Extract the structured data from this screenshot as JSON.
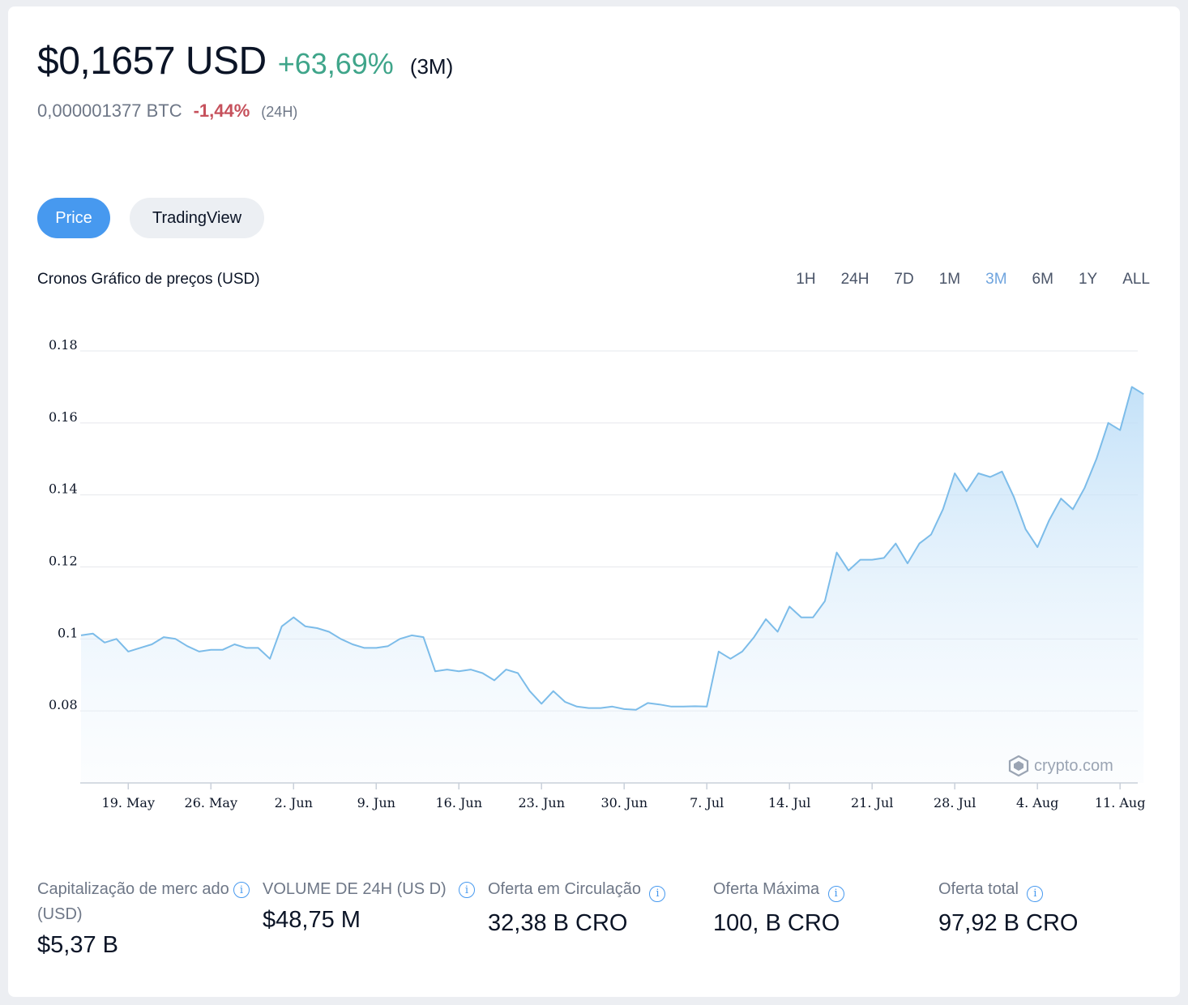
{
  "header": {
    "price": "$0,1657 USD",
    "change": "+63,69%",
    "period": "(3M)",
    "btc_price": "0,000001377 BTC",
    "btc_change": "-1,44%",
    "btc_period": "(24H)"
  },
  "tabs": [
    {
      "label": "Price",
      "active": true
    },
    {
      "label": "TradingView",
      "active": false
    }
  ],
  "chart_title": "Cronos Gráfico de preços (USD)",
  "ranges": [
    {
      "label": "1H",
      "active": false
    },
    {
      "label": "24H",
      "active": false
    },
    {
      "label": "7D",
      "active": false
    },
    {
      "label": "1M",
      "active": false
    },
    {
      "label": "3M",
      "active": true
    },
    {
      "label": "6M",
      "active": false
    },
    {
      "label": "1Y",
      "active": false
    },
    {
      "label": "ALL",
      "active": false
    }
  ],
  "watermark": "crypto.com",
  "colors": {
    "accent": "#4799ef",
    "positive": "#3fa58a",
    "negative": "#c6515c",
    "line": "#7cbce9"
  },
  "chart_data": {
    "type": "area",
    "title": "Cronos Gráfico de preços (USD)",
    "xlabel": "",
    "ylabel": "",
    "ylim": [
      0.06,
      0.18
    ],
    "y_ticks": [
      "0.08",
      "0.1",
      "0.12",
      "0.14",
      "0.16",
      "0.18"
    ],
    "x_ticks": [
      "19. May",
      "26. May",
      "2. Jun",
      "9. Jun",
      "16. Jun",
      "23. Jun",
      "30. Jun",
      "7. Jul",
      "14. Jul",
      "21. Jul",
      "28. Jul",
      "4. Aug",
      "11. Aug"
    ],
    "x_start": "2022-05-15",
    "grid": true,
    "legend": "none",
    "series": [
      {
        "x": [
          "2022-05-15",
          "2022-05-16",
          "2022-05-17",
          "2022-05-18",
          "2022-05-19",
          "2022-05-20",
          "2022-05-21",
          "2022-05-22",
          "2022-05-23",
          "2022-05-24",
          "2022-05-25",
          "2022-05-26",
          "2022-05-27",
          "2022-05-28",
          "2022-05-29",
          "2022-05-30",
          "2022-05-31",
          "2022-06-01",
          "2022-06-02",
          "2022-06-03",
          "2022-06-04",
          "2022-06-05",
          "2022-06-06",
          "2022-06-07",
          "2022-06-08",
          "2022-06-09",
          "2022-06-10",
          "2022-06-11",
          "2022-06-12",
          "2022-06-13",
          "2022-06-14",
          "2022-06-15",
          "2022-06-16",
          "2022-06-17",
          "2022-06-18",
          "2022-06-19",
          "2022-06-20",
          "2022-06-21",
          "2022-06-22",
          "2022-06-23",
          "2022-06-24",
          "2022-06-25",
          "2022-06-26",
          "2022-06-27",
          "2022-06-28",
          "2022-06-29",
          "2022-06-30",
          "2022-07-01",
          "2022-07-02",
          "2022-07-03",
          "2022-07-04",
          "2022-07-05",
          "2022-07-06",
          "2022-07-07",
          "2022-07-08",
          "2022-07-09",
          "2022-07-10",
          "2022-07-11",
          "2022-07-12",
          "2022-07-13",
          "2022-07-14",
          "2022-07-15",
          "2022-07-16",
          "2022-07-17",
          "2022-07-18",
          "2022-07-19",
          "2022-07-20",
          "2022-07-21",
          "2022-07-22",
          "2022-07-23",
          "2022-07-24",
          "2022-07-25",
          "2022-07-26",
          "2022-07-27",
          "2022-07-28",
          "2022-07-29",
          "2022-07-30",
          "2022-07-31",
          "2022-08-01",
          "2022-08-02",
          "2022-08-03",
          "2022-08-04",
          "2022-08-05",
          "2022-08-06",
          "2022-08-07",
          "2022-08-08",
          "2022-08-09",
          "2022-08-10",
          "2022-08-11",
          "2022-08-12",
          "2022-08-13"
        ],
        "y": [
          0.101,
          0.1015,
          0.099,
          0.1,
          0.0965,
          0.0975,
          0.0985,
          0.1005,
          0.1,
          0.098,
          0.0965,
          0.097,
          0.097,
          0.0985,
          0.0975,
          0.0975,
          0.0945,
          0.1035,
          0.106,
          0.1035,
          0.103,
          0.102,
          0.1,
          0.0985,
          0.0975,
          0.0975,
          0.098,
          0.1,
          0.101,
          0.1005,
          0.091,
          0.0915,
          0.091,
          0.0915,
          0.0905,
          0.0885,
          0.0915,
          0.0905,
          0.0855,
          0.082,
          0.0855,
          0.0825,
          0.0812,
          0.0808,
          0.0808,
          0.0812,
          0.0805,
          0.0803,
          0.0822,
          0.0818,
          0.0812,
          0.0812,
          0.0813,
          0.0812,
          0.0965,
          0.0945,
          0.0965,
          0.1005,
          0.1055,
          0.102,
          0.109,
          0.106,
          0.106,
          0.1105,
          0.124,
          0.119,
          0.122,
          0.122,
          0.1225,
          0.1265,
          0.121,
          0.1265,
          0.129,
          0.136,
          0.146,
          0.141,
          0.146,
          0.145,
          0.1465,
          0.1395,
          0.1305,
          0.1255,
          0.133,
          0.139,
          0.136,
          0.142,
          0.15,
          0.16,
          0.158,
          0.17,
          0.168
        ]
      }
    ]
  },
  "stats": [
    {
      "label": "Capitalização de merc ado (USD)",
      "value": "$5,37 B"
    },
    {
      "label": "VOLUME DE 24H (US D)",
      "value": "$48,75 M"
    },
    {
      "label": "Oferta em Circulação",
      "value": "32,38 B CRO"
    },
    {
      "label": "Oferta Máxima",
      "value": "100, B CRO"
    },
    {
      "label": "Oferta total",
      "value": "97,92 B CRO"
    }
  ]
}
